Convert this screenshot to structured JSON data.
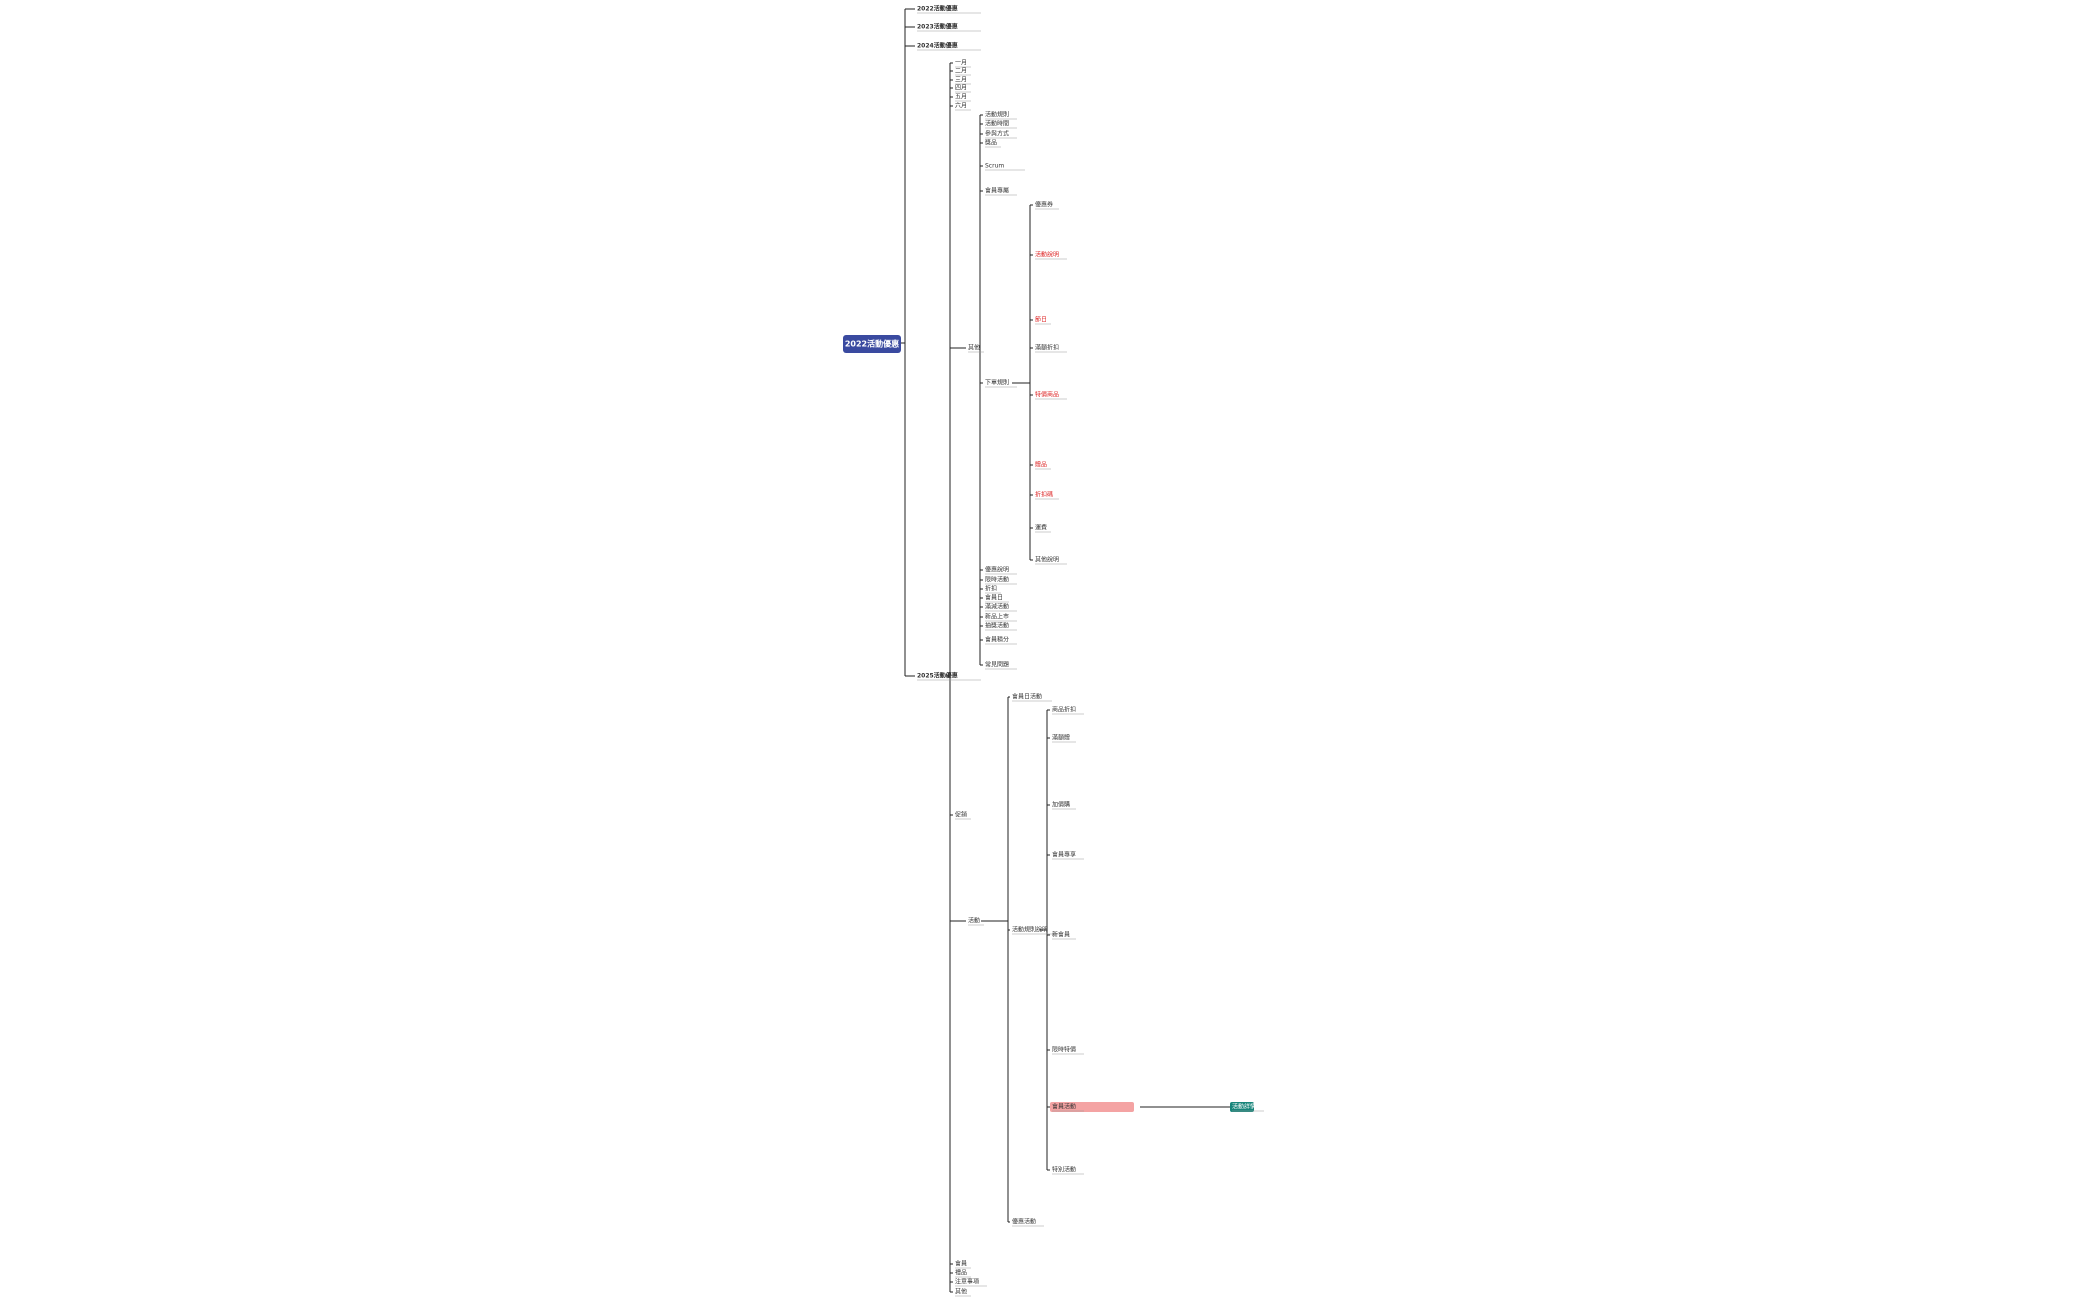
{
  "root": "2022活動優惠",
  "nodes": [
    {
      "label": "2022活動優惠"
    },
    {
      "label": "2023活動優惠"
    },
    {
      "label": "2024活動優惠"
    },
    {
      "label": "2025活動優惠"
    },
    {
      "label": "一月"
    },
    {
      "label": "二月"
    },
    {
      "label": "三月"
    },
    {
      "label": "四月"
    },
    {
      "label": "五月"
    },
    {
      "label": "六月"
    },
    {
      "label": "其他"
    },
    {
      "label": "促銷"
    },
    {
      "label": "活動"
    },
    {
      "label": "會員"
    },
    {
      "label": "禮品"
    },
    {
      "label": "注意事項"
    },
    {
      "label": "其他"
    },
    {
      "label": "活動規則"
    },
    {
      "label": "活動時間"
    },
    {
      "label": "參與方式"
    },
    {
      "label": "獎品"
    },
    {
      "label": "Scrum"
    },
    {
      "label": "會員專屬"
    },
    {
      "label": "下單規則"
    },
    {
      "label": "優惠說明"
    },
    {
      "label": "限時活動"
    },
    {
      "label": "折扣"
    },
    {
      "label": "會員日"
    },
    {
      "label": "滿減活動"
    },
    {
      "label": "新品上市"
    },
    {
      "label": "抽獎活動"
    },
    {
      "label": "會員積分"
    },
    {
      "label": "常見問題"
    },
    {
      "label": "優惠券"
    },
    {
      "label": "活動說明"
    },
    {
      "label": "節日"
    },
    {
      "label": "滿額折扣"
    },
    {
      "label": "特價商品"
    },
    {
      "label": "贈品"
    },
    {
      "label": "折扣碼"
    },
    {
      "label": "運費"
    },
    {
      "label": "其他說明"
    },
    {
      "label": "會員日活動"
    },
    {
      "label": "活動規則說明"
    },
    {
      "label": "優惠活動"
    },
    {
      "label": "商品折扣"
    },
    {
      "label": "滿額贈"
    },
    {
      "label": "加價購"
    },
    {
      "label": "會員專享"
    },
    {
      "label": "新會員"
    },
    {
      "label": "限時特價"
    },
    {
      "label": "會員活動"
    },
    {
      "label": "特別活動"
    },
    {
      "label": "活動詳情"
    }
  ]
}
